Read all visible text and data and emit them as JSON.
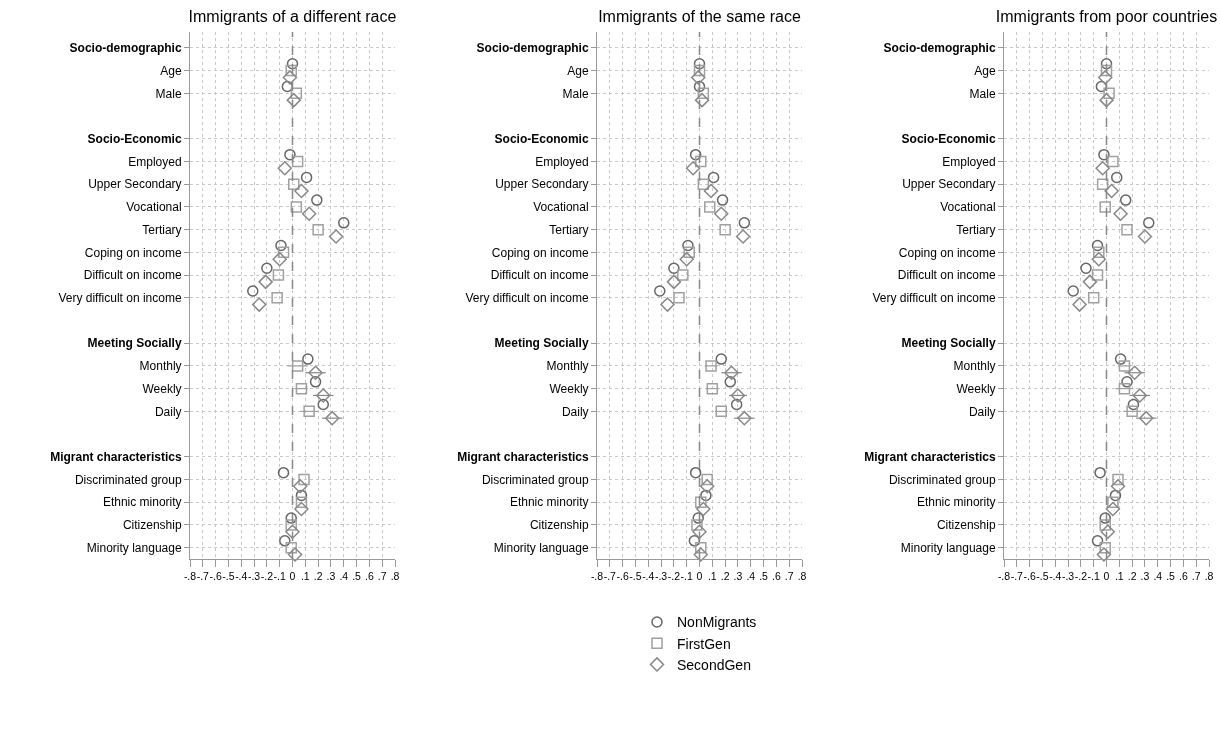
{
  "chart_data": [
    {
      "type": "scatter",
      "orientation": "horizontal",
      "title": "Immigrants of a different race",
      "categories": [
        "Socio-demographic",
        "Age",
        "Male",
        null,
        "Socio-Economic",
        "Employed",
        "Upper Secondary",
        "Vocational",
        "Tertiary",
        "Coping on income",
        "Difficult on income",
        "Very difficult on income",
        null,
        "Meeting Socially",
        "Monthly",
        "Weekly",
        "Daily",
        null,
        "Migrant characteristics",
        "Discriminated group",
        "Ethnic minority",
        "Citizenship",
        "Minority language"
      ],
      "series": [
        {
          "color": "#666666",
          "marker": "circle",
          "values": [
            null,
            0,
            -0.04,
            null,
            null,
            -0.02,
            0.11,
            0.19,
            0.4,
            -0.09,
            -0.2,
            -0.31,
            null,
            null,
            0.12,
            0.18,
            0.24,
            null,
            null,
            -0.07,
            0.07,
            -0.01,
            -0.06
          ]
        },
        {
          "color": "#a0a0a0",
          "marker": "square",
          "values": [
            null,
            -0.01,
            0.03,
            null,
            null,
            0.04,
            0.01,
            0.03,
            0.2,
            -0.07,
            -0.11,
            -0.12,
            null,
            null,
            0.04,
            0.07,
            0.13,
            null,
            null,
            0.09,
            0.07,
            -0.01,
            -0.01
          ],
          "errors": [
            null,
            null,
            null,
            null,
            null,
            null,
            null,
            null,
            null,
            null,
            null,
            null,
            null,
            null,
            0.08,
            0.05,
            0.07,
            null,
            null,
            null,
            null,
            null,
            null
          ]
        },
        {
          "color": "#888888",
          "marker": "diamond",
          "values": [
            null,
            -0.02,
            0.01,
            null,
            null,
            -0.06,
            0.07,
            0.13,
            0.34,
            -0.1,
            -0.21,
            -0.26,
            null,
            null,
            0.18,
            0.24,
            0.31,
            null,
            null,
            0.06,
            0.07,
            0,
            0.02
          ],
          "errors": [
            null,
            null,
            null,
            null,
            null,
            null,
            null,
            null,
            null,
            null,
            null,
            null,
            null,
            null,
            0.08,
            0.08,
            0.08,
            null,
            null,
            null,
            null,
            null,
            null
          ]
        }
      ],
      "xlim": [
        -0.8,
        0.8
      ],
      "xticks": [
        {
          "value": -0.8,
          "label": "-.8"
        },
        {
          "value": -0.7,
          "label": "-.7"
        },
        {
          "value": -0.6,
          "label": "-.6"
        },
        {
          "value": -0.5,
          "label": "-.5"
        },
        {
          "value": -0.4,
          "label": "-.4"
        },
        {
          "value": -0.3,
          "label": "-.3"
        },
        {
          "value": -0.2,
          "label": "-.2"
        },
        {
          "value": -0.1,
          "label": "-.1"
        },
        {
          "value": 0,
          "label": "0"
        },
        {
          "value": 0.1,
          "label": ".1"
        },
        {
          "value": 0.2,
          "label": ".2"
        },
        {
          "value": 0.3,
          "label": ".3"
        },
        {
          "value": 0.4,
          "label": ".4"
        },
        {
          "value": 0.5,
          "label": ".5"
        },
        {
          "value": 0.6,
          "label": ".6"
        },
        {
          "value": 0.7,
          "label": ".7"
        },
        {
          "value": 0.8,
          "label": ".8"
        }
      ],
      "ref_lines": [
        {
          "axis": "x",
          "value": 0,
          "color": "#888888",
          "line_style": "dashed"
        }
      ],
      "grid": true
    },
    {
      "type": "scatter",
      "orientation": "horizontal",
      "title": "Immigrants of the same race",
      "categories": [
        "Socio-demographic",
        "Age",
        "Male",
        null,
        "Socio-Economic",
        "Employed",
        "Upper Secondary",
        "Vocational",
        "Tertiary",
        "Coping on income",
        "Difficult on income",
        "Very difficult on income",
        null,
        "Meeting Socially",
        "Monthly",
        "Weekly",
        "Daily",
        null,
        "Migrant characteristics",
        "Discriminated group",
        "Ethnic minority",
        "Citizenship",
        "Minority language"
      ],
      "series": [
        {
          "name": "NonMigrants",
          "color": "#666666",
          "marker": "circle",
          "values": [
            null,
            0,
            0,
            null,
            null,
            -0.03,
            0.11,
            0.18,
            0.35,
            -0.09,
            -0.2,
            -0.31,
            null,
            null,
            0.17,
            0.24,
            0.29,
            null,
            null,
            -0.03,
            0.05,
            -0.01,
            -0.04
          ]
        },
        {
          "name": "FirstGen",
          "color": "#a0a0a0",
          "marker": "square",
          "values": [
            null,
            0,
            0.03,
            null,
            null,
            0.01,
            0.03,
            0.08,
            0.2,
            -0.08,
            -0.13,
            -0.16,
            null,
            null,
            0.09,
            0.1,
            0.17,
            null,
            null,
            0.06,
            0.01,
            -0.02,
            0.01
          ],
          "errors": [
            null,
            null,
            null,
            null,
            null,
            null,
            null,
            null,
            null,
            null,
            null,
            null,
            null,
            null,
            0.05,
            0.05,
            0.05,
            null,
            null,
            null,
            null,
            null,
            null
          ]
        },
        {
          "name": "SecondGen",
          "color": "#888888",
          "marker": "diamond",
          "values": [
            null,
            -0.01,
            0.02,
            null,
            null,
            -0.05,
            0.09,
            0.17,
            0.34,
            -0.1,
            -0.2,
            -0.25,
            null,
            null,
            0.25,
            0.3,
            0.35,
            null,
            null,
            0.06,
            0.03,
            0,
            0.01
          ],
          "errors": [
            null,
            null,
            null,
            null,
            null,
            null,
            null,
            null,
            null,
            null,
            null,
            null,
            null,
            null,
            0.08,
            0.07,
            0.08,
            null,
            null,
            null,
            null,
            null,
            null
          ]
        }
      ],
      "xlim": [
        -0.8,
        0.8
      ],
      "xticks": [
        {
          "value": -0.8,
          "label": "-.8"
        },
        {
          "value": -0.7,
          "label": "-.7"
        },
        {
          "value": -0.6,
          "label": "-.6"
        },
        {
          "value": -0.5,
          "label": "-.5"
        },
        {
          "value": -0.4,
          "label": "-.4"
        },
        {
          "value": -0.3,
          "label": "-.3"
        },
        {
          "value": -0.2,
          "label": "-.2"
        },
        {
          "value": -0.1,
          "label": "-.1"
        },
        0,
        {
          "value": 0.1,
          "label": ".1"
        },
        {
          "value": 0.2,
          "label": ".2"
        },
        {
          "value": 0.3,
          "label": ".3"
        },
        {
          "value": 0.4,
          "label": ".4"
        },
        {
          "value": 0.5,
          "label": ".5"
        },
        {
          "value": 0.6,
          "label": ".6"
        },
        {
          "value": 0.7,
          "label": ".7"
        },
        {
          "value": 0.8,
          "label": ".8"
        }
      ],
      "ref_lines": [
        {
          "axis": "x",
          "value": 0,
          "color": "#888888",
          "line_style": "dashed"
        }
      ],
      "grid": true,
      "legend": "bottom"
    },
    {
      "type": "scatter",
      "orientation": "horizontal",
      "title": "Immigrants from poor countries",
      "categories": [
        "Socio-demographic",
        "Age",
        "Male",
        null,
        "Socio-Economic",
        "Employed",
        "Upper Secondary",
        "Vocational",
        "Tertiary",
        "Coping on income",
        "Difficult on income",
        "Very difficult on income",
        null,
        "Meeting Socially",
        "Monthly",
        "Weekly",
        "Daily",
        null,
        "Migrant characteristics",
        "Discriminated group",
        "Ethnic minority",
        "Citizenship",
        "Minority language"
      ],
      "series": [
        {
          "color": "#666666",
          "marker": "circle",
          "values": [
            null,
            0,
            -0.04,
            null,
            null,
            -0.02,
            0.08,
            0.15,
            0.33,
            -0.07,
            -0.16,
            -0.26,
            null,
            null,
            0.11,
            0.16,
            0.21,
            null,
            null,
            -0.05,
            0.07,
            -0.01,
            -0.07
          ]
        },
        {
          "color": "#a0a0a0",
          "marker": "square",
          "values": [
            null,
            0,
            0.02,
            null,
            null,
            0.05,
            -0.03,
            -0.01,
            0.16,
            -0.06,
            -0.07,
            -0.1,
            null,
            null,
            0.14,
            0.14,
            0.2,
            null,
            null,
            0.09,
            0.05,
            -0.01,
            -0.01
          ],
          "errors": [
            null,
            null,
            null,
            null,
            null,
            null,
            null,
            null,
            null,
            null,
            null,
            null,
            null,
            null,
            0.05,
            0.07,
            0.07,
            null,
            null,
            null,
            null,
            null,
            null
          ]
        },
        {
          "color": "#888888",
          "marker": "diamond",
          "values": [
            null,
            -0.01,
            0,
            null,
            null,
            -0.03,
            0.04,
            0.11,
            0.3,
            -0.06,
            -0.13,
            -0.21,
            null,
            null,
            0.22,
            0.26,
            0.31,
            null,
            null,
            0.09,
            0.05,
            0.01,
            -0.02
          ],
          "errors": [
            null,
            null,
            null,
            null,
            null,
            null,
            null,
            null,
            null,
            null,
            null,
            null,
            null,
            null,
            0.08,
            0.08,
            0.08,
            null,
            null,
            null,
            null,
            null,
            null
          ]
        }
      ],
      "xlim": [
        -0.8,
        0.8
      ],
      "xticks": [
        {
          "value": -0.8,
          "label": "-.8"
        },
        {
          "value": -0.7,
          "label": "-.7"
        },
        {
          "value": -0.6,
          "label": "-.6"
        },
        {
          "value": -0.5,
          "label": "-.5"
        },
        {
          "value": -0.4,
          "label": "-.4"
        },
        {
          "value": -0.3,
          "label": "-.3"
        },
        {
          "value": -0.2,
          "label": "-.2"
        },
        {
          "value": -0.1,
          "label": "-.1"
        },
        0,
        {
          "value": 0.1,
          "label": ".1"
        },
        {
          "value": 0.2,
          "label": ".2"
        },
        {
          "value": 0.3,
          "label": ".3"
        },
        {
          "value": 0.4,
          "label": ".4"
        },
        {
          "value": 0.5,
          "label": ".5"
        },
        {
          "value": 0.6,
          "label": ".6"
        },
        {
          "value": 0.7,
          "label": ".7"
        },
        {
          "value": 0.8,
          "label": ".8"
        }
      ],
      "ref_lines": [
        {
          "axis": "x",
          "value": 0,
          "color": "#888888",
          "line_style": "dashed"
        }
      ],
      "grid": true
    }
  ]
}
